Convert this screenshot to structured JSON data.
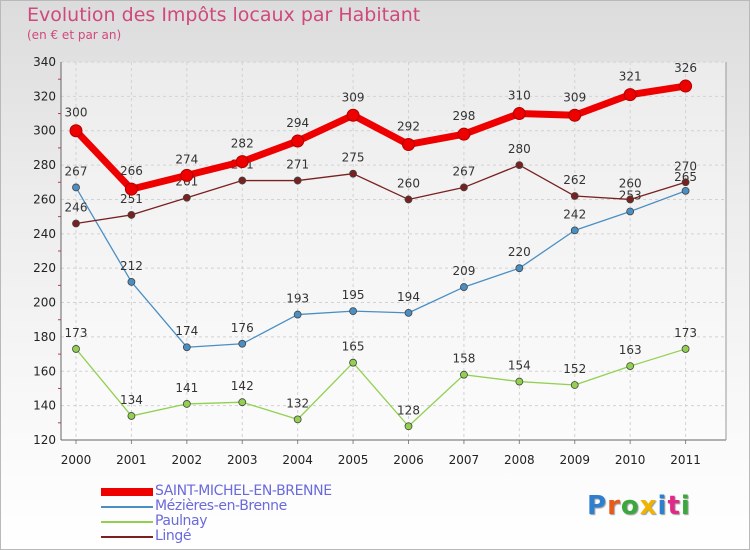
{
  "title": "Evolution des Impôts locaux par Habitant",
  "subtitle": "(en € et par an)",
  "logo_text": "Proxiti",
  "logo_colors": [
    "#2f7fd0",
    "#e85a1c",
    "#3aa83a",
    "#f0b400",
    "#2f7fd0",
    "#e02a8a",
    "#3aa83a"
  ],
  "chart_data": {
    "type": "line",
    "categories": [
      "2000",
      "2001",
      "2002",
      "2003",
      "2004",
      "2005",
      "2006",
      "2007",
      "2008",
      "2009",
      "2010",
      "2011"
    ],
    "ylim": [
      120,
      340
    ],
    "yticks": [
      "120",
      "140",
      "160",
      "180",
      "200",
      "220",
      "240",
      "260",
      "280",
      "300",
      "320",
      "340"
    ],
    "grid": true,
    "legend_position": "bottom-left",
    "series": [
      {
        "name": "SAINT-MICHEL-EN-BRENNE",
        "color": "#ee0000",
        "values": [
          300,
          266,
          274,
          282,
          294,
          309,
          292,
          298,
          310,
          309,
          321,
          326
        ]
      },
      {
        "name": "Mézières-en-Brenne",
        "color": "#4a8fc4",
        "values": [
          267,
          212,
          174,
          176,
          193,
          195,
          194,
          209,
          220,
          242,
          253,
          265
        ]
      },
      {
        "name": "Paulnay",
        "color": "#92d050",
        "values": [
          173,
          134,
          141,
          142,
          132,
          165,
          128,
          158,
          154,
          152,
          163,
          173
        ]
      },
      {
        "name": "Lingé",
        "color": "#7a2020",
        "values": [
          246,
          251,
          261,
          271,
          271,
          275,
          260,
          267,
          280,
          262,
          260,
          270
        ]
      }
    ]
  }
}
